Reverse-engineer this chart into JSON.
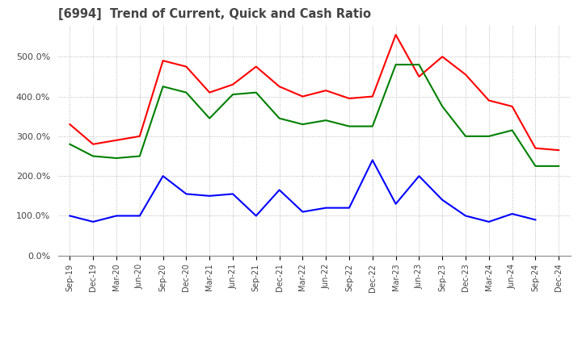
{
  "title": "[6994]  Trend of Current, Quick and Cash Ratio",
  "x_labels": [
    "Sep-19",
    "Dec-19",
    "Mar-20",
    "Jun-20",
    "Sep-20",
    "Dec-20",
    "Mar-21",
    "Jun-21",
    "Sep-21",
    "Dec-21",
    "Mar-22",
    "Jun-22",
    "Sep-22",
    "Dec-22",
    "Mar-23",
    "Jun-23",
    "Sep-23",
    "Dec-23",
    "Mar-24",
    "Jun-24",
    "Sep-24",
    "Dec-24"
  ],
  "current_ratio": [
    330,
    280,
    290,
    300,
    490,
    475,
    410,
    430,
    475,
    425,
    400,
    415,
    395,
    400,
    555,
    450,
    500,
    455,
    390,
    375,
    270,
    265
  ],
  "quick_ratio": [
    280,
    250,
    245,
    250,
    425,
    410,
    345,
    405,
    410,
    345,
    330,
    340,
    325,
    325,
    480,
    480,
    375,
    300,
    300,
    315,
    225,
    225
  ],
  "cash_ratio": [
    100,
    85,
    100,
    100,
    200,
    155,
    150,
    155,
    100,
    165,
    110,
    120,
    120,
    240,
    130,
    200,
    140,
    100,
    85,
    105,
    90,
    null
  ],
  "ylim": [
    0,
    580
  ],
  "yticks": [
    0,
    100,
    200,
    300,
    400,
    500
  ],
  "current_color": "#ff0000",
  "quick_color": "#008000",
  "cash_color": "#0000ff",
  "background_color": "#ffffff",
  "grid_color": "#aaaaaa"
}
